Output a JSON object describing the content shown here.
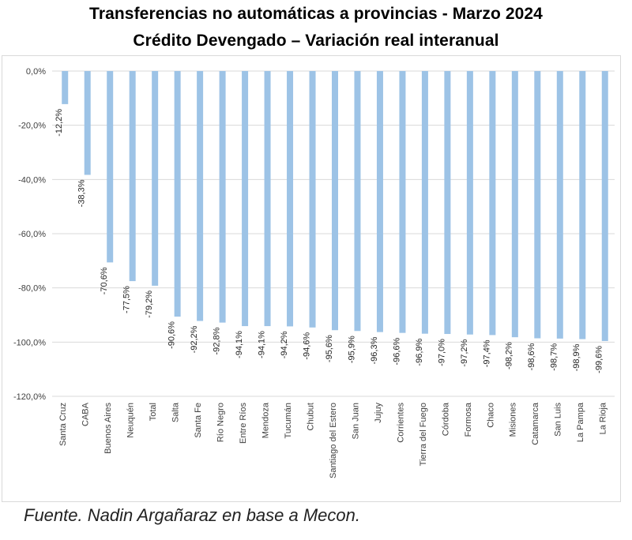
{
  "chart_data": {
    "type": "bar",
    "title": "Transferencias no automáticas a provincias - Marzo 2024",
    "subtitle": "Crédito Devengado – Variación real interanual",
    "categories": [
      "Santa Cruz",
      "CABA",
      "Buenos Aires",
      "Neuquén",
      "Total",
      "Salta",
      "Santa Fe",
      "Río Negro",
      "Entre Ríos",
      "Mendoza",
      "Tucumán",
      "Chubut",
      "Santiago del Estero",
      "San Juan",
      "Jujuy",
      "Corrientes",
      "Tierra del Fuego",
      "Córdoba",
      "Formosa",
      "Chaco",
      "Misiones",
      "Catamarca",
      "San Luis",
      "La Pampa",
      "La Rioja"
    ],
    "values": [
      -12.2,
      -38.3,
      -70.6,
      -77.5,
      -79.2,
      -90.6,
      -92.2,
      -92.8,
      -94.1,
      -94.1,
      -94.2,
      -94.6,
      -95.6,
      -95.9,
      -96.3,
      -96.6,
      -96.9,
      -97.0,
      -97.2,
      -97.4,
      -98.2,
      -98.6,
      -98.7,
      -98.9,
      -99.6
    ],
    "value_labels": [
      "-12,2%",
      "-38,3%",
      "-70,6%",
      "-77,5%",
      "-79,2%",
      "-90,6%",
      "-92,2%",
      "-92,8%",
      "-94,1%",
      "-94,1%",
      "-94,2%",
      "-94,6%",
      "-95,6%",
      "-95,9%",
      "-96,3%",
      "-96,6%",
      "-96,9%",
      "-97,0%",
      "-97,2%",
      "-97,4%",
      "-98,2%",
      "-98,6%",
      "-98,7%",
      "-98,9%",
      "-99,6%"
    ],
    "y_ticks": [
      "0,0%",
      "-20,0%",
      "-40,0%",
      "-60,0%",
      "-80,0%",
      "-100,0%",
      "-120,0%"
    ],
    "y_tick_values": [
      0,
      -20,
      -40,
      -60,
      -80,
      -100,
      -120
    ],
    "ylim": [
      -120,
      0
    ],
    "grid": true,
    "bar_color": "#9dc3e6",
    "grid_color": "#d9d9d9"
  },
  "source": "Fuente. Nadin Argañaraz en base a Mecon."
}
